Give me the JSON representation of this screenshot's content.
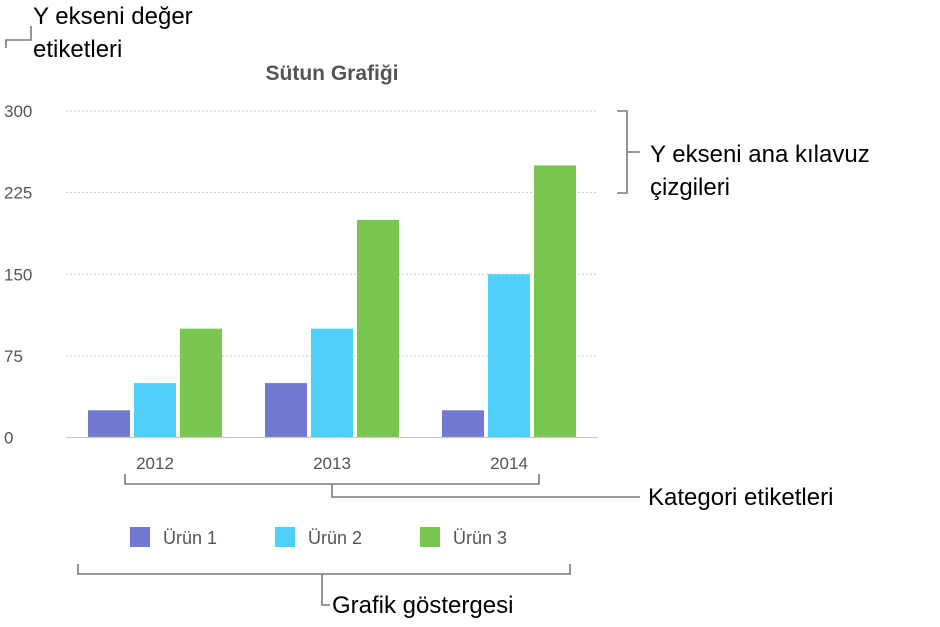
{
  "callouts": {
    "y_value_labels_line1": "Y ekseni değer",
    "y_value_labels_line2": "etiketleri",
    "y_gridlines_line1": "Y ekseni ana kılavuz",
    "y_gridlines_line2": "çizgileri",
    "category_labels": "Kategori etiketleri",
    "legend": "Grafik göstergesi"
  },
  "chart_data": {
    "type": "bar",
    "title": "Sütun Grafiği",
    "categories": [
      "2012",
      "2013",
      "2014"
    ],
    "series": [
      {
        "name": "Ürün 1",
        "color": "#7279d0",
        "values": [
          25,
          50,
          25
        ]
      },
      {
        "name": "Ürün 2",
        "color": "#4fd0fb",
        "values": [
          50,
          100,
          150
        ]
      },
      {
        "name": "Ürün 3",
        "color": "#7ac74f",
        "values": [
          100,
          200,
          250
        ]
      }
    ],
    "yticks": [
      "0",
      "75",
      "150",
      "225",
      "300"
    ],
    "ylim": [
      0,
      300
    ],
    "grid": true,
    "legend_position": "bottom"
  }
}
